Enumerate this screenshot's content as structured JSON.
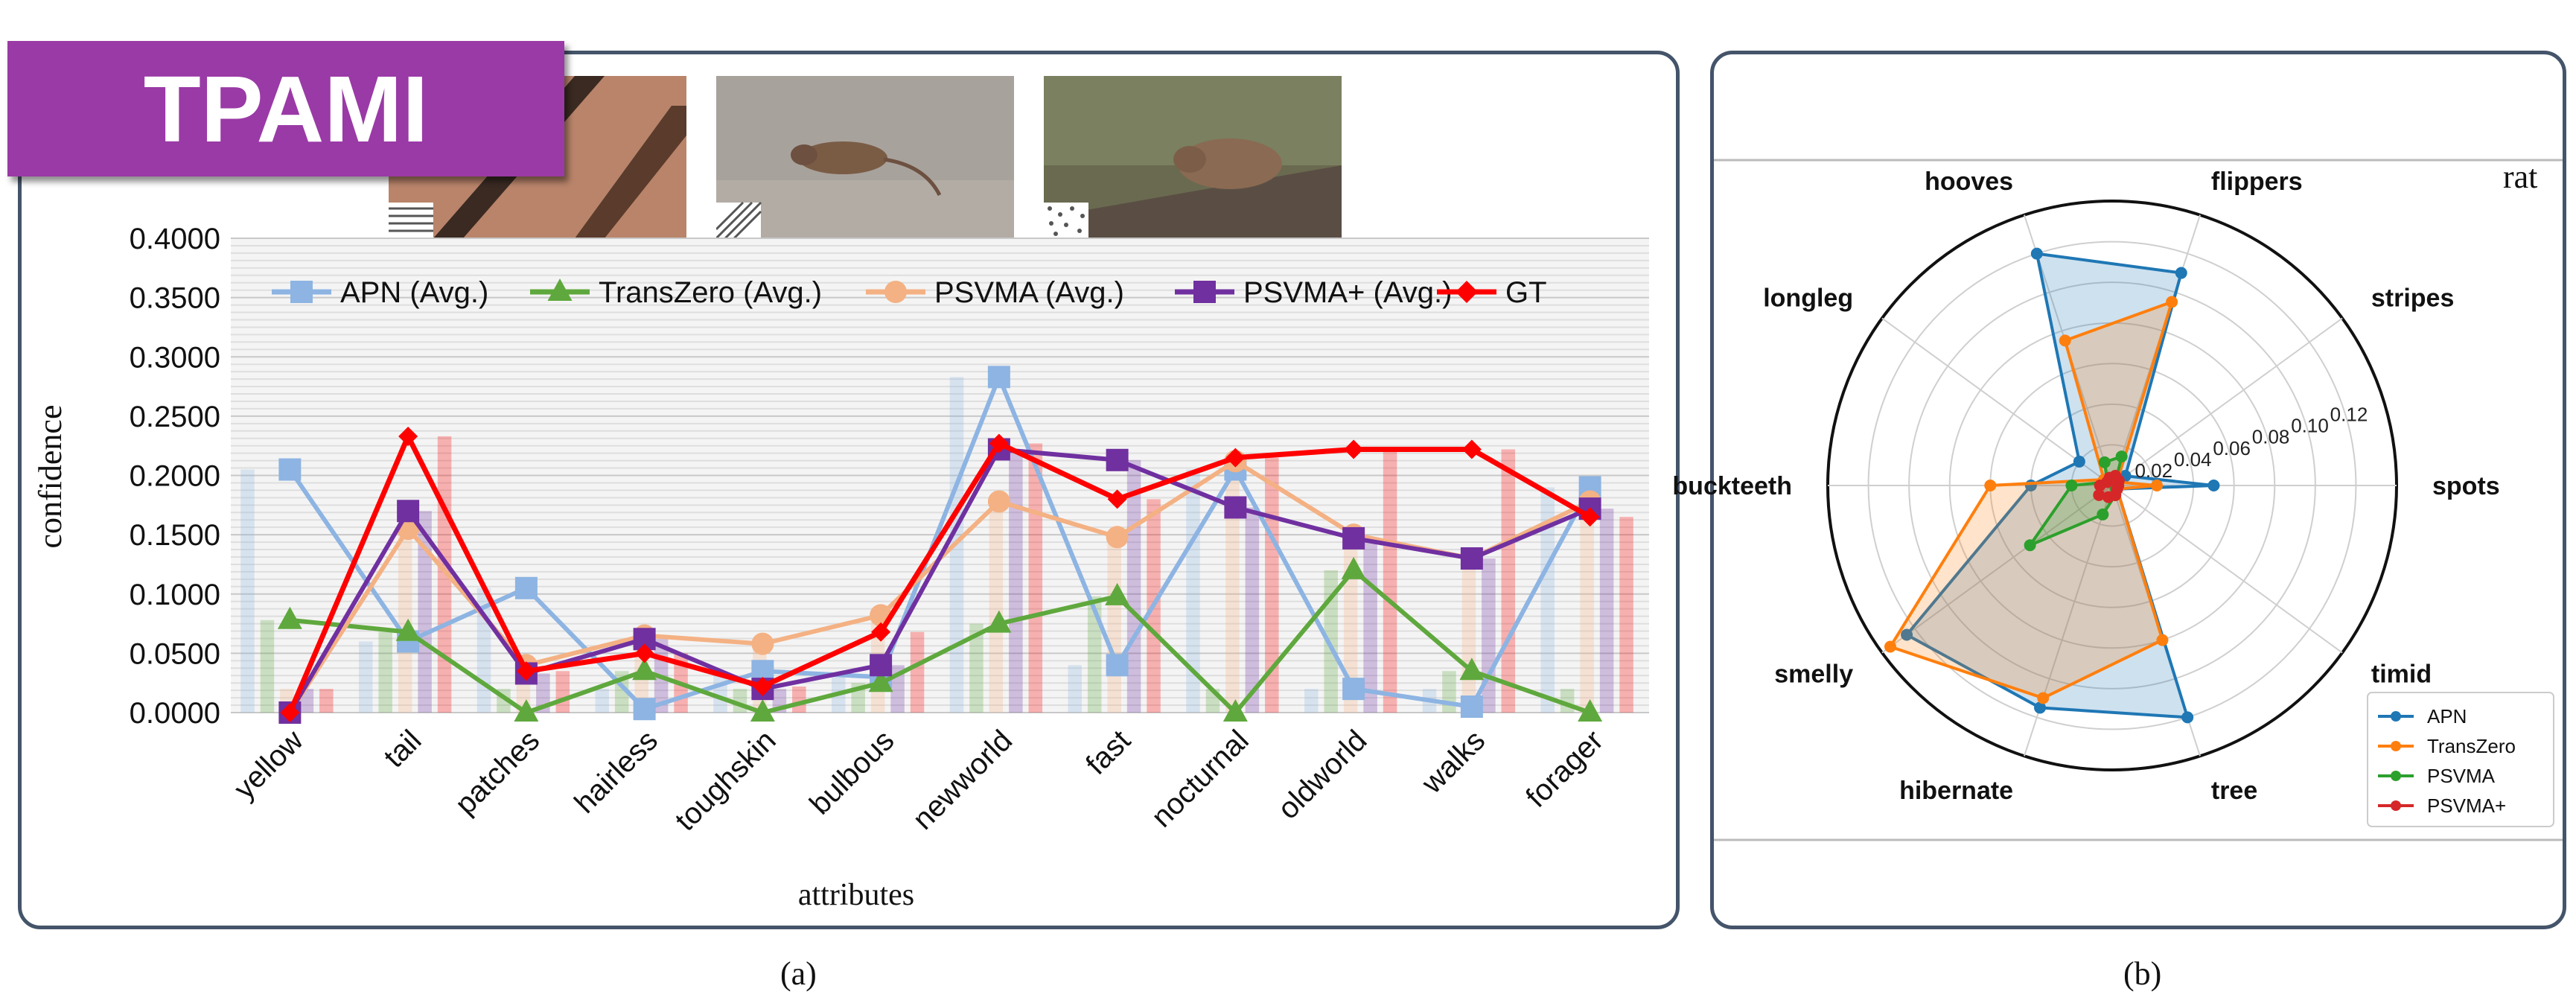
{
  "badge": "TPAMI",
  "caption_a": "(a)",
  "caption_b": "(b)",
  "colors": {
    "frame": "#44546a",
    "badge": "#9a3aa6"
  },
  "chart_data": [
    {
      "type": "line",
      "xlabel": "attributes",
      "ylabel": "confidence",
      "ylim": [
        0,
        0.4
      ],
      "yticks": [
        "0.0000",
        "0.0500",
        "0.1000",
        "0.1500",
        "0.2000",
        "0.2500",
        "0.3000",
        "0.3500",
        "0.4000"
      ],
      "grid": true,
      "legend_position": "top",
      "categories": [
        "yellow",
        "tail",
        "patches",
        "hairless",
        "toughskin",
        "bulbous",
        "newworld",
        "fast",
        "nocturnal",
        "oldworld",
        "walks",
        "forager"
      ],
      "series": [
        {
          "name": "APN (Avg.)",
          "color": "#8db4e2",
          "marker": "square",
          "values": [
            0.205,
            0.06,
            0.105,
            0.003,
            0.035,
            0.03,
            0.283,
            0.04,
            0.205,
            0.02,
            0.005,
            0.19
          ]
        },
        {
          "name": "TransZero (Avg.)",
          "color": "#5fa83d",
          "marker": "triangle",
          "values": [
            0.078,
            0.068,
            0.0,
            0.035,
            0.0,
            0.025,
            0.075,
            0.098,
            0.0,
            0.12,
            0.035,
            0.0
          ]
        },
        {
          "name": "PSVMA (Avg.)",
          "color": "#f4b183",
          "marker": "circle",
          "values": [
            0.0,
            0.155,
            0.04,
            0.065,
            0.058,
            0.082,
            0.178,
            0.148,
            0.212,
            0.15,
            0.13,
            0.178
          ]
        },
        {
          "name": "PSVMA+ (Avg.)",
          "color": "#7030a0",
          "marker": "square",
          "values": [
            0.0,
            0.17,
            0.033,
            0.062,
            0.02,
            0.04,
            0.222,
            0.213,
            0.173,
            0.147,
            0.13,
            0.172
          ]
        },
        {
          "name": "GT",
          "color": "#ff0000",
          "marker": "diamond",
          "values": [
            0.0,
            0.233,
            0.035,
            0.05,
            0.022,
            0.068,
            0.227,
            0.18,
            0.215,
            0.222,
            0.222,
            0.165
          ]
        }
      ]
    },
    {
      "type": "radar",
      "title": "rat",
      "axes": [
        "spots",
        "stripes",
        "flippers",
        "hooves",
        "longleg",
        "buckteeth",
        "smelly",
        "hibernate",
        "tree",
        "timid"
      ],
      "radial_ticks": [
        "0.02",
        "0.04",
        "0.06",
        "0.08",
        "0.10",
        "0.12"
      ],
      "rmax": 0.14,
      "legend_position": "lower-right",
      "series": [
        {
          "name": "APN",
          "color": "#1f77b4",
          "values": [
            0.05,
            0.008,
            0.11,
            0.12,
            0.02,
            0.04,
            0.125,
            0.115,
            0.12,
            0.003
          ]
        },
        {
          "name": "TransZero",
          "color": "#ff7f0e",
          "values": [
            0.022,
            0.003,
            0.095,
            0.075,
            0.005,
            0.06,
            0.135,
            0.11,
            0.08,
            0.003
          ]
        },
        {
          "name": "PSVMA",
          "color": "#2ca02c",
          "values": [
            0.003,
            0.002,
            0.015,
            0.012,
            0.003,
            0.02,
            0.05,
            0.015,
            0.005,
            0.002
          ]
        },
        {
          "name": "PSVMA+",
          "color": "#d62728",
          "values": [
            0.003,
            0.004,
            0.005,
            0.004,
            0.003,
            0.006,
            0.008,
            0.006,
            0.005,
            0.003
          ]
        }
      ]
    }
  ]
}
